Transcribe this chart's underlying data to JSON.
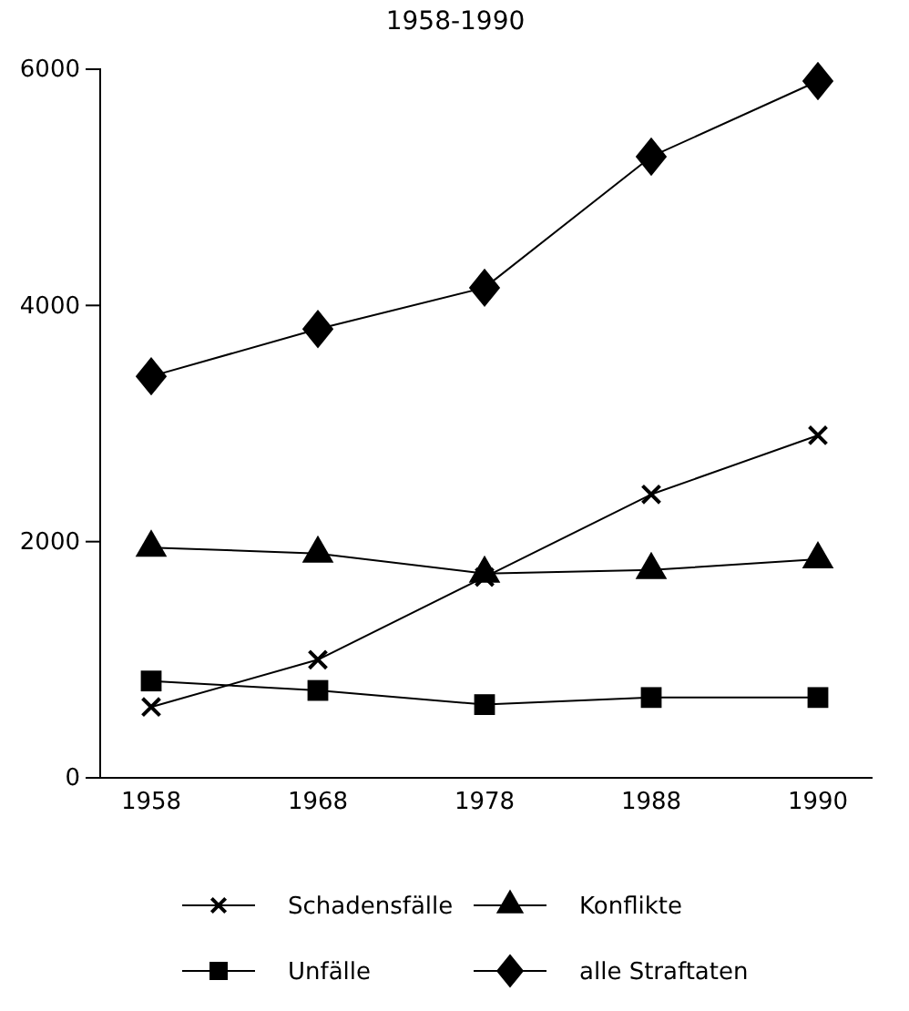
{
  "chart_data": {
    "type": "line",
    "title": "1958-1990",
    "categories": [
      "1958",
      "1968",
      "1978",
      "1988",
      "1990"
    ],
    "ylim": [
      0,
      6000
    ],
    "yticks": [
      0,
      2000,
      4000,
      6000
    ],
    "grid": false,
    "legend": "bottom",
    "series": [
      {
        "name": "Schadensfälle",
        "color": "#000000",
        "marker": "cross",
        "values": [
          600,
          1000,
          1700,
          2400,
          2900
        ]
      },
      {
        "name": "Konflikte",
        "color": "#000000",
        "marker": "triangle",
        "values": [
          1950,
          1900,
          1730,
          1760,
          1850
        ]
      },
      {
        "name": "Unfälle",
        "color": "#000000",
        "marker": "square",
        "values": [
          820,
          740,
          620,
          680,
          680
        ]
      },
      {
        "name": "alle Straftaten",
        "color": "#000000",
        "marker": "diamond",
        "values": [
          3400,
          3800,
          4150,
          5260,
          5900
        ]
      }
    ]
  }
}
